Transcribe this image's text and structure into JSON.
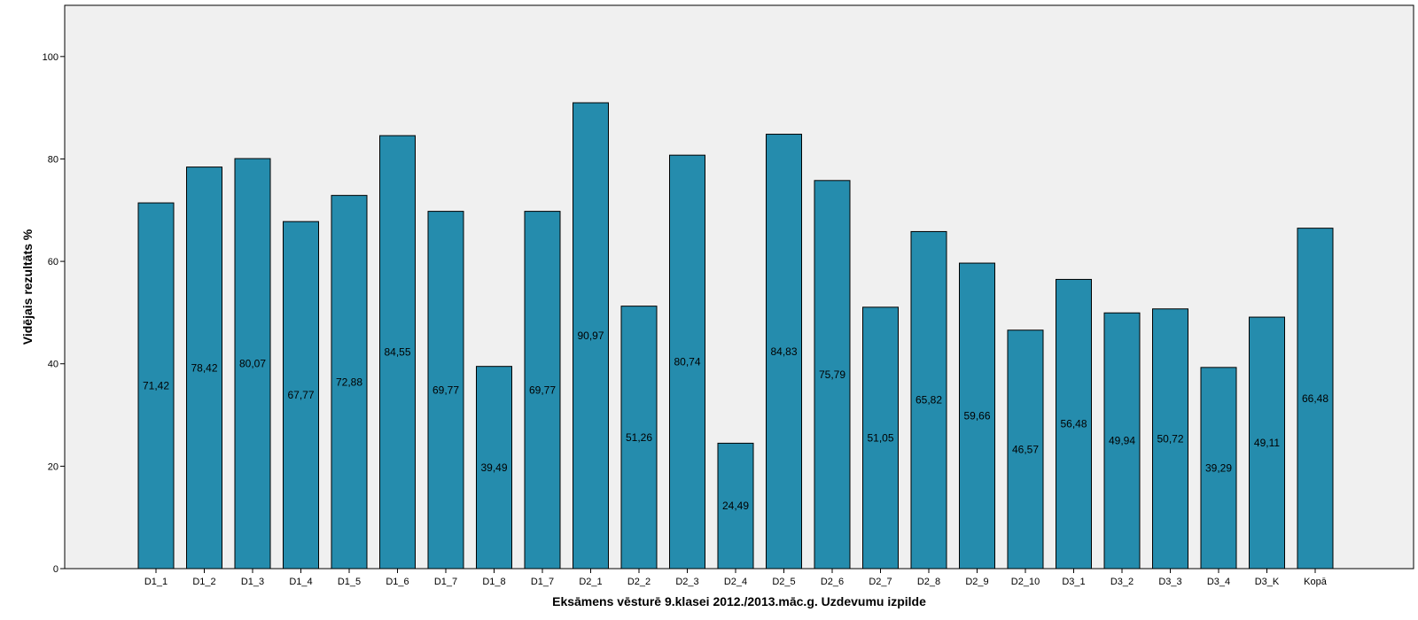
{
  "chart_data": {
    "type": "bar",
    "title": "",
    "xlabel": "Eksāmens vēsturē 9.klasei 2012./2013.māc.g. Uzdevumu izpilde",
    "ylabel": "Vidējais rezultāts %",
    "ylim": [
      0,
      110
    ],
    "yticks": [
      "0",
      "20",
      "40",
      "60",
      "80",
      "100"
    ],
    "grid": false,
    "legend": "none",
    "bar_color": "#258cad",
    "plot_background": "#f0f0f0",
    "categories": [
      "D1_1",
      "D1_2",
      "D1_3",
      "D1_4",
      "D1_5",
      "D1_6",
      "D1_7",
      "D1_8",
      "D1_7",
      "D2_1",
      "D2_2",
      "D2_3",
      "D2_4",
      "D2_5",
      "D2_6",
      "D2_7",
      "D2_8",
      "D2_9",
      "D2_10",
      "D3_1",
      "D3_2",
      "D3_3",
      "D3_4",
      "D3_K",
      "Kopā"
    ],
    "values": [
      71.42,
      78.42,
      80.07,
      67.77,
      72.88,
      84.55,
      69.77,
      39.49,
      69.77,
      90.97,
      51.26,
      80.74,
      24.49,
      84.83,
      75.79,
      51.05,
      65.82,
      59.66,
      46.57,
      56.48,
      49.94,
      50.72,
      39.29,
      49.11,
      66.48
    ],
    "value_labels": [
      "71,42",
      "78,42",
      "80,07",
      "67,77",
      "72,88",
      "84,55",
      "69,77",
      "39,49",
      "69,77",
      "90,97",
      "51,26",
      "80,74",
      "24,49",
      "84,83",
      "75,79",
      "51,05",
      "65,82",
      "59,66",
      "46,57",
      "56,48",
      "49,94",
      "50,72",
      "39,29",
      "49,11",
      "66,48"
    ]
  }
}
